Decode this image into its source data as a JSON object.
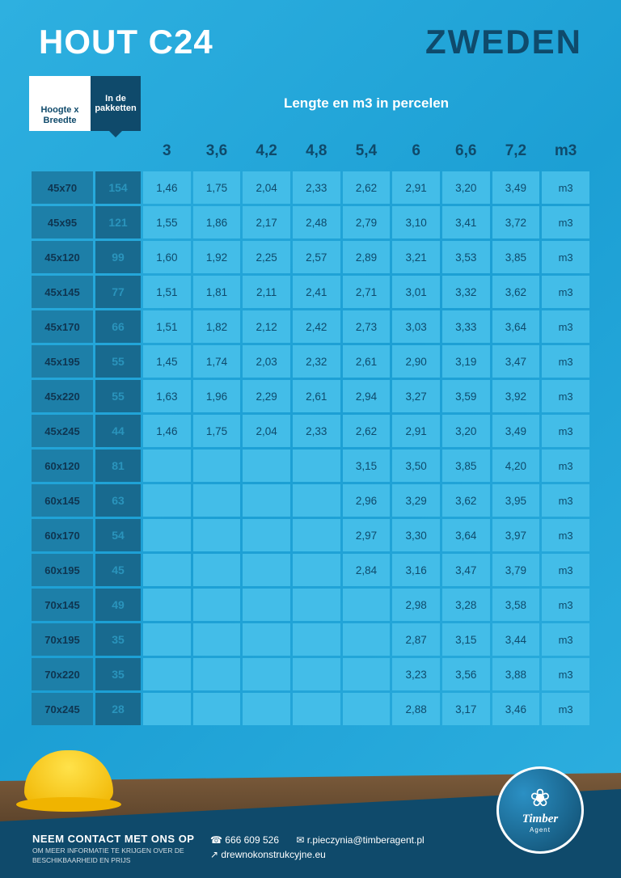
{
  "header": {
    "title": "HOUT C24",
    "country": "ZWEDEN"
  },
  "labels": {
    "corner": "Hoogte x Breedte",
    "pakketten": "In de pakketten",
    "lengte_title": "Lengte en m3 in percelen",
    "unit": "m3"
  },
  "table": {
    "lengths": [
      "3",
      "3,6",
      "4,2",
      "4,8",
      "5,4",
      "6",
      "6,6",
      "7,2"
    ],
    "rows": [
      {
        "dim": "45x70",
        "pak": "154",
        "vals": [
          "1,46",
          "1,75",
          "2,04",
          "2,33",
          "2,62",
          "2,91",
          "3,20",
          "3,49"
        ]
      },
      {
        "dim": "45x95",
        "pak": "121",
        "vals": [
          "1,55",
          "1,86",
          "2,17",
          "2,48",
          "2,79",
          "3,10",
          "3,41",
          "3,72"
        ]
      },
      {
        "dim": "45x120",
        "pak": "99",
        "vals": [
          "1,60",
          "1,92",
          "2,25",
          "2,57",
          "2,89",
          "3,21",
          "3,53",
          "3,85"
        ]
      },
      {
        "dim": "45x145",
        "pak": "77",
        "vals": [
          "1,51",
          "1,81",
          "2,11",
          "2,41",
          "2,71",
          "3,01",
          "3,32",
          "3,62"
        ]
      },
      {
        "dim": "45x170",
        "pak": "66",
        "vals": [
          "1,51",
          "1,82",
          "2,12",
          "2,42",
          "2,73",
          "3,03",
          "3,33",
          "3,64"
        ]
      },
      {
        "dim": "45x195",
        "pak": "55",
        "vals": [
          "1,45",
          "1,74",
          "2,03",
          "2,32",
          "2,61",
          "2,90",
          "3,19",
          "3,47"
        ]
      },
      {
        "dim": "45x220",
        "pak": "55",
        "vals": [
          "1,63",
          "1,96",
          "2,29",
          "2,61",
          "2,94",
          "3,27",
          "3,59",
          "3,92"
        ]
      },
      {
        "dim": "45x245",
        "pak": "44",
        "vals": [
          "1,46",
          "1,75",
          "2,04",
          "2,33",
          "2,62",
          "2,91",
          "3,20",
          "3,49"
        ]
      },
      {
        "dim": "60x120",
        "pak": "81",
        "vals": [
          "",
          "",
          "",
          "",
          "3,15",
          "3,50",
          "3,85",
          "4,20"
        ]
      },
      {
        "dim": "60x145",
        "pak": "63",
        "vals": [
          "",
          "",
          "",
          "",
          "2,96",
          "3,29",
          "3,62",
          "3,95"
        ]
      },
      {
        "dim": "60x170",
        "pak": "54",
        "vals": [
          "",
          "",
          "",
          "",
          "2,97",
          "3,30",
          "3,64",
          "3,97"
        ]
      },
      {
        "dim": "60x195",
        "pak": "45",
        "vals": [
          "",
          "",
          "",
          "",
          "2,84",
          "3,16",
          "3,47",
          "3,79"
        ]
      },
      {
        "dim": "70x145",
        "pak": "49",
        "vals": [
          "",
          "",
          "",
          "",
          "",
          "2,98",
          "3,28",
          "3,58"
        ]
      },
      {
        "dim": "70x195",
        "pak": "35",
        "vals": [
          "",
          "",
          "",
          "",
          "",
          "2,87",
          "3,15",
          "3,44"
        ]
      },
      {
        "dim": "70x220",
        "pak": "35",
        "vals": [
          "",
          "",
          "",
          "",
          "",
          "3,23",
          "3,56",
          "3,88"
        ]
      },
      {
        "dim": "70x245",
        "pak": "28",
        "vals": [
          "",
          "",
          "",
          "",
          "",
          "2,88",
          "3,17",
          "3,46"
        ]
      }
    ]
  },
  "footer": {
    "heading": "NEEM CONTACT MET ONS OP",
    "sub": "OM MEER INFORMATIE TE KRIJGEN OVER DE BESCHIKBAARHEID EN PRIJS",
    "phone": "666 609 526",
    "email": "r.pieczynia@timberagent.pl",
    "website": "drewnokonstrukcyjne.eu",
    "brand": "Timber",
    "brand_sub": "Agent"
  },
  "colors": {
    "bg_gradient_a": "#2eb0e0",
    "bg_gradient_b": "#1c9fd4",
    "dark": "#0f4a6b",
    "cell_dim": "#1d7fa8",
    "cell_pak": "#186a8f",
    "cell_val": "#43bde8",
    "white": "#ffffff"
  }
}
